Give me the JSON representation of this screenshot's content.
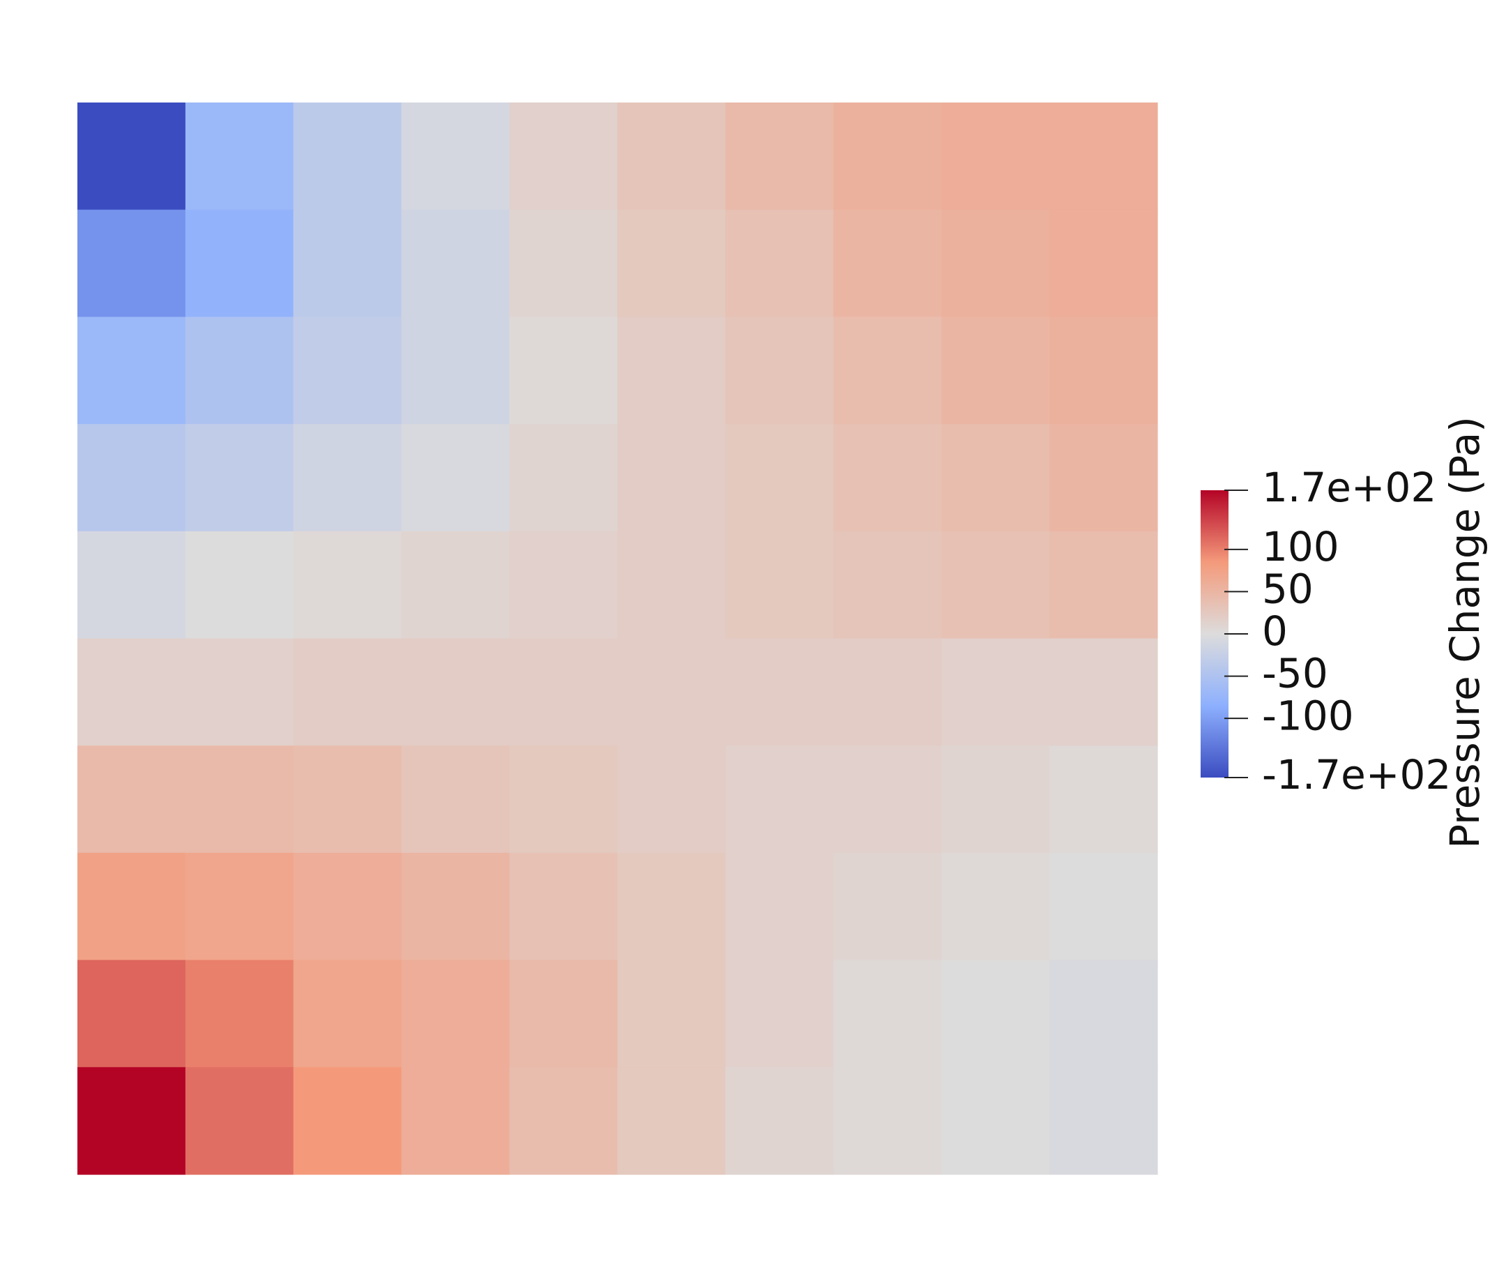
{
  "chart_data": {
    "type": "heatmap",
    "values": [
      [
        -170,
        -70,
        -35,
        -10,
        15,
        30,
        45,
        55,
        60,
        60
      ],
      [
        -110,
        -80,
        -35,
        -15,
        10,
        25,
        35,
        50,
        55,
        60
      ],
      [
        -70,
        -50,
        -30,
        -15,
        5,
        20,
        30,
        40,
        50,
        55
      ],
      [
        -40,
        -30,
        -15,
        -5,
        10,
        20,
        25,
        35,
        40,
        50
      ],
      [
        -10,
        0,
        5,
        10,
        15,
        20,
        25,
        30,
        35,
        40
      ],
      [
        15,
        15,
        20,
        20,
        20,
        20,
        20,
        20,
        15,
        15
      ],
      [
        45,
        45,
        40,
        30,
        25,
        20,
        15,
        15,
        10,
        5
      ],
      [
        75,
        70,
        60,
        50,
        35,
        25,
        15,
        10,
        5,
        0
      ],
      [
        115,
        100,
        70,
        60,
        45,
        25,
        15,
        5,
        0,
        -5
      ],
      [
        170,
        110,
        85,
        60,
        40,
        25,
        10,
        5,
        0,
        -5
      ]
    ],
    "colormap": [
      "#3b4cc0",
      "#8db0fe",
      "#dddcdc",
      "#f49a7b",
      "#b40426"
    ],
    "zlim": [
      -170,
      170
    ],
    "zticks": [
      {
        "value": 170,
        "label": "1.7e+02"
      },
      100,
      50,
      0,
      -50,
      -100,
      {
        "value": -170,
        "label": "-1.7e+02"
      }
    ],
    "colorbar_label": "Pressure Change (Pa)"
  }
}
